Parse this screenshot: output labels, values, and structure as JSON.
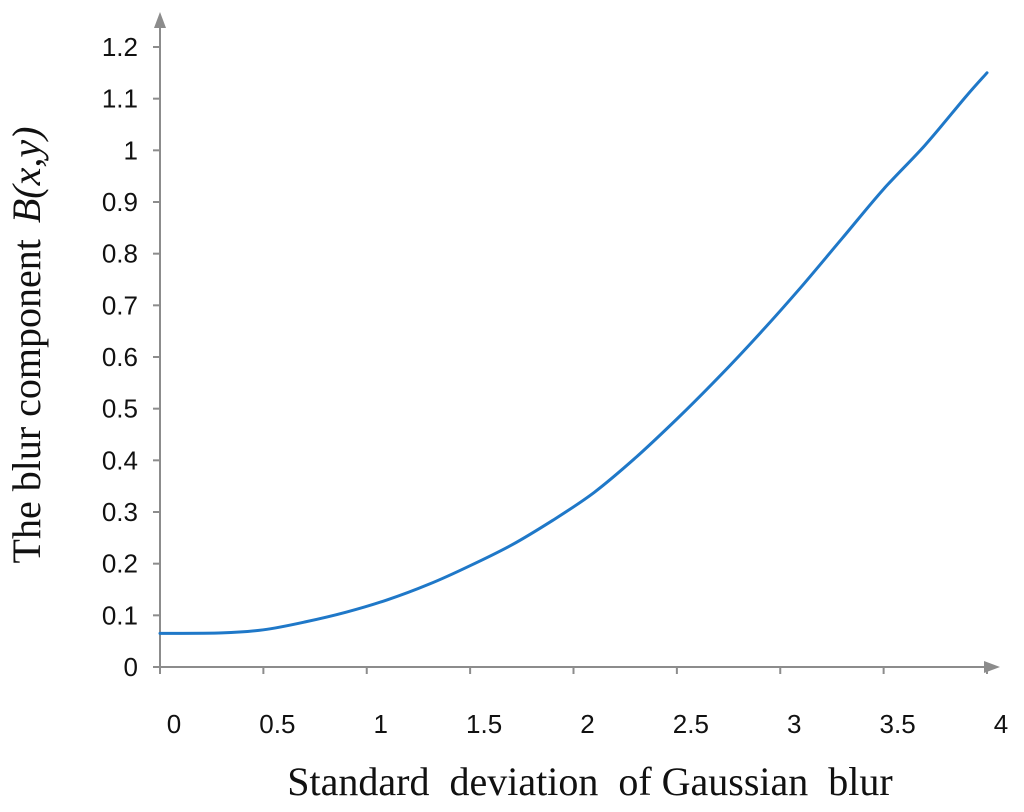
{
  "chart_data": {
    "type": "line",
    "title": "",
    "xlabel": "Standard  deviation  of Gaussian  blur",
    "ylabel": "The blur component",
    "ylabel_math": "B(x,y)",
    "xlim": [
      0,
      4
    ],
    "ylim": [
      0,
      1.2
    ],
    "grid": false,
    "legend": "none",
    "x_ticks": [
      "0",
      "0.5",
      "1",
      "1.5",
      "2",
      "2.5",
      "3",
      "3.5",
      "4"
    ],
    "y_ticks": [
      "0",
      "0.1",
      "0.2",
      "0.3",
      "0.4",
      "0.5",
      "0.6",
      "0.7",
      "0.8",
      "0.9",
      "1",
      "1.1",
      "1.2"
    ],
    "series": [
      {
        "color": "#1f78c8",
        "x": [
          0,
          0.3,
          0.5,
          0.7,
          0.9,
          1.1,
          1.3,
          1.5,
          1.7,
          1.9,
          2.1,
          2.3,
          2.5,
          2.7,
          2.9,
          3.1,
          3.3,
          3.5,
          3.7,
          3.9,
          4.0
        ],
        "y": [
          0.065,
          0.066,
          0.072,
          0.087,
          0.106,
          0.13,
          0.16,
          0.196,
          0.236,
          0.284,
          0.338,
          0.405,
          0.48,
          0.56,
          0.645,
          0.735,
          0.83,
          0.925,
          1.01,
          1.105,
          1.15
        ]
      }
    ],
    "colors": {
      "axis": "#8c8c8c",
      "line": "#1f78c8"
    }
  }
}
